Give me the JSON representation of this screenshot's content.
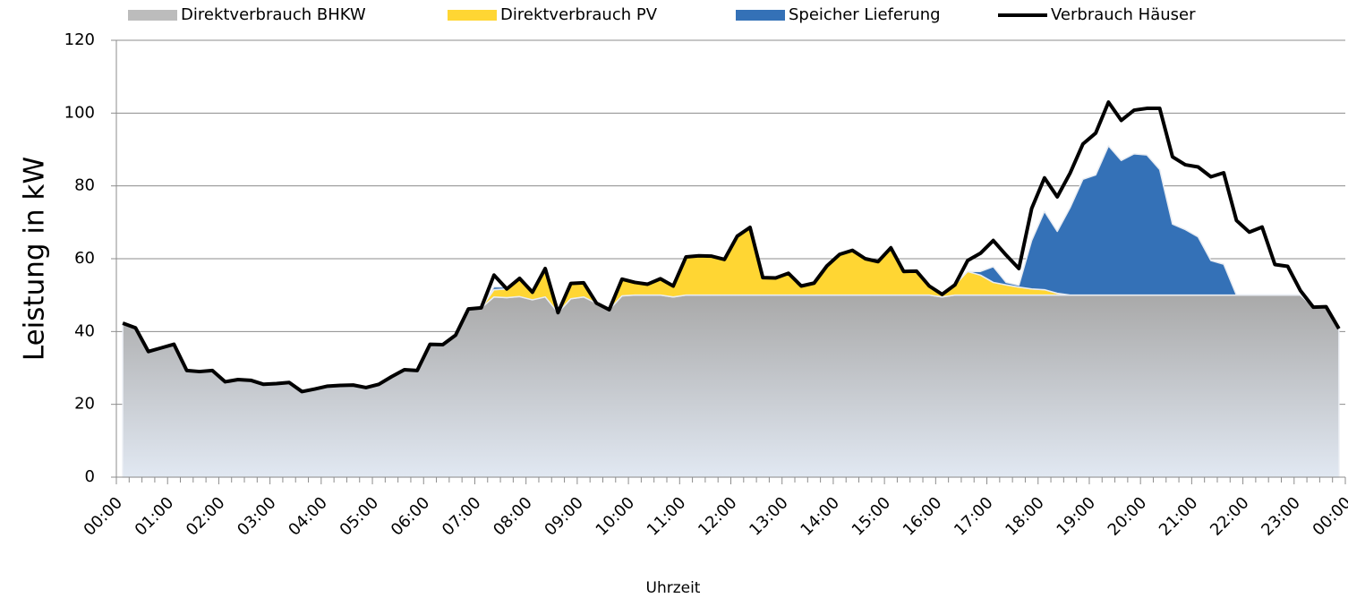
{
  "chart_data": {
    "type": "stacked_area_line",
    "y_label": "Leistung in kW",
    "x_label": "Uhrzeit",
    "xtick_labels": [
      "00:00",
      "01:00",
      "02:00",
      "03:00",
      "04:00",
      "05:00",
      "06:00",
      "07:00",
      "08:00",
      "09:00",
      "10:00",
      "11:00",
      "12:00",
      "13:00",
      "14:00",
      "15:00",
      "16:00",
      "17:00",
      "18:00",
      "19:00",
      "20:00",
      "21:00",
      "22:00",
      "23:00",
      "00:00"
    ],
    "ylim": [
      0,
      120
    ],
    "yticks": [
      0,
      20,
      40,
      60,
      80,
      100,
      120
    ],
    "grid": true,
    "legend": "top",
    "series": [
      {
        "name": "Direktverbrauch BHKW",
        "type": "area",
        "color": "#b4b4b4",
        "values": [
          42.3,
          41,
          34.5,
          35.5,
          36.5,
          29.3,
          29,
          29.3,
          26.2,
          26.8,
          26.6,
          25.5,
          25.7,
          26,
          23.5,
          24.2,
          25,
          25.2,
          25.3,
          24.6,
          25.5,
          27.6,
          29.5,
          29.3,
          36.5,
          36.4,
          39,
          46.2,
          46.5,
          49.5,
          49.3,
          49.6,
          48.7,
          49.5,
          45.2,
          49,
          49.5,
          47.8,
          46,
          49.8,
          50,
          50,
          50,
          49.5,
          50,
          50,
          50,
          50,
          50,
          50,
          50,
          50,
          50,
          50,
          50,
          50,
          50,
          50,
          50,
          50,
          50,
          50,
          50,
          50,
          49.5,
          50,
          50,
          50,
          50,
          50,
          50,
          50,
          50,
          50,
          50,
          50,
          50,
          50,
          50,
          50,
          50,
          50,
          50,
          50,
          50,
          50,
          50,
          50,
          50,
          50,
          50,
          50,
          50,
          46.7,
          46.8,
          40.8
        ]
      },
      {
        "name": "Direktverbrauch PV",
        "type": "area",
        "color": "#ffd633",
        "values": [
          0,
          0,
          0,
          0,
          0,
          0,
          0,
          0,
          0,
          0,
          0,
          0,
          0,
          0,
          0,
          0,
          0,
          0,
          0,
          0,
          0,
          0,
          0,
          0,
          0,
          0,
          0,
          0,
          0,
          2,
          2.4,
          5,
          2.1,
          7.8,
          0,
          4.2,
          3.9,
          0,
          0,
          4.6,
          3.5,
          3,
          4.5,
          3,
          10.5,
          10.8,
          10.7,
          9.8,
          16.2,
          18.6,
          4.8,
          4.7,
          6,
          2.5,
          3.3,
          8,
          11.2,
          12.3,
          10,
          9.2,
          13,
          6.5,
          6.6,
          2.5,
          0.7,
          2.8,
          6.5,
          5.5,
          3.5,
          2.8,
          2.2,
          1.7,
          1.5,
          0.5,
          0,
          0,
          0,
          0,
          0,
          0,
          0,
          0,
          0,
          0,
          0,
          0,
          0,
          0,
          0,
          0,
          0,
          0,
          0,
          0,
          0,
          0
        ]
      },
      {
        "name": "Speicher Lieferung",
        "type": "area",
        "color": "#3471b7",
        "values": [
          0,
          0,
          0,
          0,
          0,
          0,
          0,
          0,
          0,
          0,
          0,
          0,
          0,
          0,
          0,
          0,
          0,
          0,
          0,
          0,
          0,
          0,
          0,
          0,
          0,
          0,
          0,
          0,
          0,
          0.8,
          0.5,
          0.3,
          0,
          0,
          0,
          0,
          0,
          0,
          0,
          0,
          0,
          0,
          0,
          0,
          0,
          0,
          0,
          0,
          0,
          0,
          0,
          0,
          0,
          0,
          0,
          0,
          0,
          0,
          0,
          0,
          0,
          0,
          0,
          0,
          0,
          0,
          0,
          1,
          4.3,
          0.7,
          0.5,
          13.3,
          21.5,
          17,
          24,
          31.8,
          33,
          41,
          37,
          38.8,
          38.5,
          34.5,
          19.5,
          18,
          16,
          9.5,
          8.5,
          0,
          0,
          0,
          0,
          0,
          0,
          0,
          0,
          0
        ]
      },
      {
        "name": "Verbrauch Häuser",
        "type": "line",
        "color": "#000000",
        "values": [
          42.3,
          41,
          34.5,
          35.5,
          36.5,
          29.3,
          29,
          29.3,
          26.2,
          26.8,
          26.6,
          25.5,
          25.7,
          26,
          23.5,
          24.2,
          25,
          25.2,
          25.3,
          24.6,
          25.5,
          27.6,
          29.5,
          29.3,
          36.5,
          36.4,
          39,
          46.2,
          46.5,
          55.5,
          51.7,
          54.6,
          50.8,
          57.3,
          45.2,
          53.2,
          53.4,
          47.8,
          46,
          54.4,
          53.5,
          53,
          54.5,
          52.5,
          60.5,
          60.8,
          60.7,
          59.8,
          66.2,
          68.6,
          54.8,
          54.7,
          56,
          52.5,
          53.3,
          58,
          61.2,
          62.3,
          60,
          59.2,
          63,
          56.5,
          56.6,
          52.5,
          50.2,
          52.8,
          59.5,
          61.5,
          65,
          61,
          57.3,
          73.8,
          82.2,
          77,
          83.5,
          91.5,
          94.5,
          103,
          98,
          100.8,
          101.3,
          101.3,
          88,
          85.8,
          85.2,
          82.5,
          83.6,
          70.5,
          67.3,
          68.7,
          58.4,
          57.9,
          51.2,
          46.7,
          46.8,
          40.8
        ]
      }
    ]
  }
}
